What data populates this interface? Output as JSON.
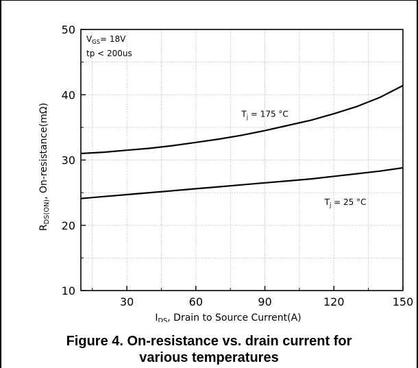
{
  "chart_data": {
    "type": "line",
    "xlim": [
      10,
      150
    ],
    "ylim": [
      10,
      50
    ],
    "x_ticks": [
      30,
      60,
      90,
      120,
      150
    ],
    "x_tick_labels": [
      "30",
      "60",
      "90",
      "120",
      "150"
    ],
    "y_ticks": [
      10,
      20,
      30,
      40,
      50
    ],
    "y_tick_labels": [
      "10",
      "20",
      "30",
      "40",
      "50"
    ],
    "grid": true,
    "xlabel": {
      "main": "I",
      "sub": "DS",
      "rest": ", Drain to Source Current(A)"
    },
    "ylabel": {
      "main": "R",
      "sub": "DS(ON)",
      "rest": ", On-resistance(mΩ)"
    },
    "conditions": [
      {
        "main": "V",
        "sub": "GS",
        "rest": "= 18V"
      },
      {
        "main": "tp < 200us",
        "sub": "",
        "rest": ""
      }
    ],
    "series": [
      {
        "name": {
          "main": "T",
          "sub": "j",
          "rest": " = 175 °C"
        },
        "label_at": [
          90,
          36.6
        ],
        "x": [
          10,
          20,
          30,
          40,
          50,
          60,
          70,
          80,
          90,
          100,
          110,
          120,
          130,
          140,
          150
        ],
        "y": [
          31.0,
          31.2,
          31.5,
          31.8,
          32.2,
          32.7,
          33.2,
          33.8,
          34.5,
          35.3,
          36.1,
          37.1,
          38.2,
          39.6,
          41.4
        ]
      },
      {
        "name": {
          "main": "T",
          "sub": "j",
          "rest": " = 25 °C"
        },
        "label_at": [
          125,
          23.1
        ],
        "x": [
          10,
          20,
          30,
          40,
          50,
          60,
          70,
          80,
          90,
          100,
          110,
          120,
          130,
          140,
          150
        ],
        "y": [
          24.1,
          24.4,
          24.7,
          25.0,
          25.3,
          25.6,
          25.9,
          26.2,
          26.5,
          26.8,
          27.1,
          27.5,
          27.9,
          28.3,
          28.8
        ]
      }
    ]
  },
  "caption": {
    "line1": "Figure 4. On-resistance vs. drain current for",
    "line2": "various temperatures"
  }
}
